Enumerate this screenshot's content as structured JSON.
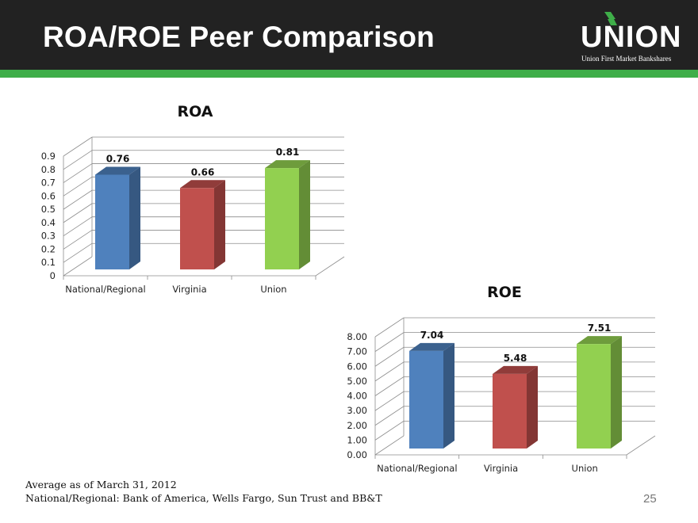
{
  "slide": {
    "title": "ROA/ROE Peer Comparison",
    "page_number": "25"
  },
  "logo": {
    "name": "UNION",
    "tagline": "Union First Market Bankshares"
  },
  "footnotes": [
    "Average as of March 31, 2012",
    "National/Regional: Bank of America, Wells Fargo, Sun Trust and BB&T"
  ],
  "colors": {
    "header_bg": "#222222",
    "accent_green": "#3fae49",
    "bar_blue": "#4f81bd",
    "bar_red": "#c0504d",
    "bar_green": "#92d050"
  },
  "chart_data": [
    {
      "type": "bar",
      "title": "ROA",
      "categories": [
        "National/Regional",
        "Virginia",
        "Union"
      ],
      "values": [
        0.76,
        0.66,
        0.81
      ],
      "value_labels": [
        "0.76",
        "0.66",
        "0.81"
      ],
      "ylim": [
        0,
        0.9
      ],
      "yticks": [
        "0",
        "0.1",
        "0.2",
        "0.3",
        "0.4",
        "0.5",
        "0.6",
        "0.7",
        "0.8",
        "0.9"
      ],
      "xlabel": "",
      "ylabel": "",
      "grid": true,
      "legend": "none",
      "style": "3d"
    },
    {
      "type": "bar",
      "title": "ROE",
      "categories": [
        "National/Regional",
        "Virginia",
        "Union"
      ],
      "values": [
        7.04,
        5.48,
        7.51
      ],
      "value_labels": [
        "7.04",
        "5.48",
        "7.51"
      ],
      "ylim": [
        0,
        8
      ],
      "yticks": [
        "0.00",
        "1.00",
        "2.00",
        "3.00",
        "4.00",
        "5.00",
        "6.00",
        "7.00",
        "8.00"
      ],
      "xlabel": "",
      "ylabel": "",
      "grid": true,
      "legend": "none",
      "style": "3d"
    }
  ]
}
